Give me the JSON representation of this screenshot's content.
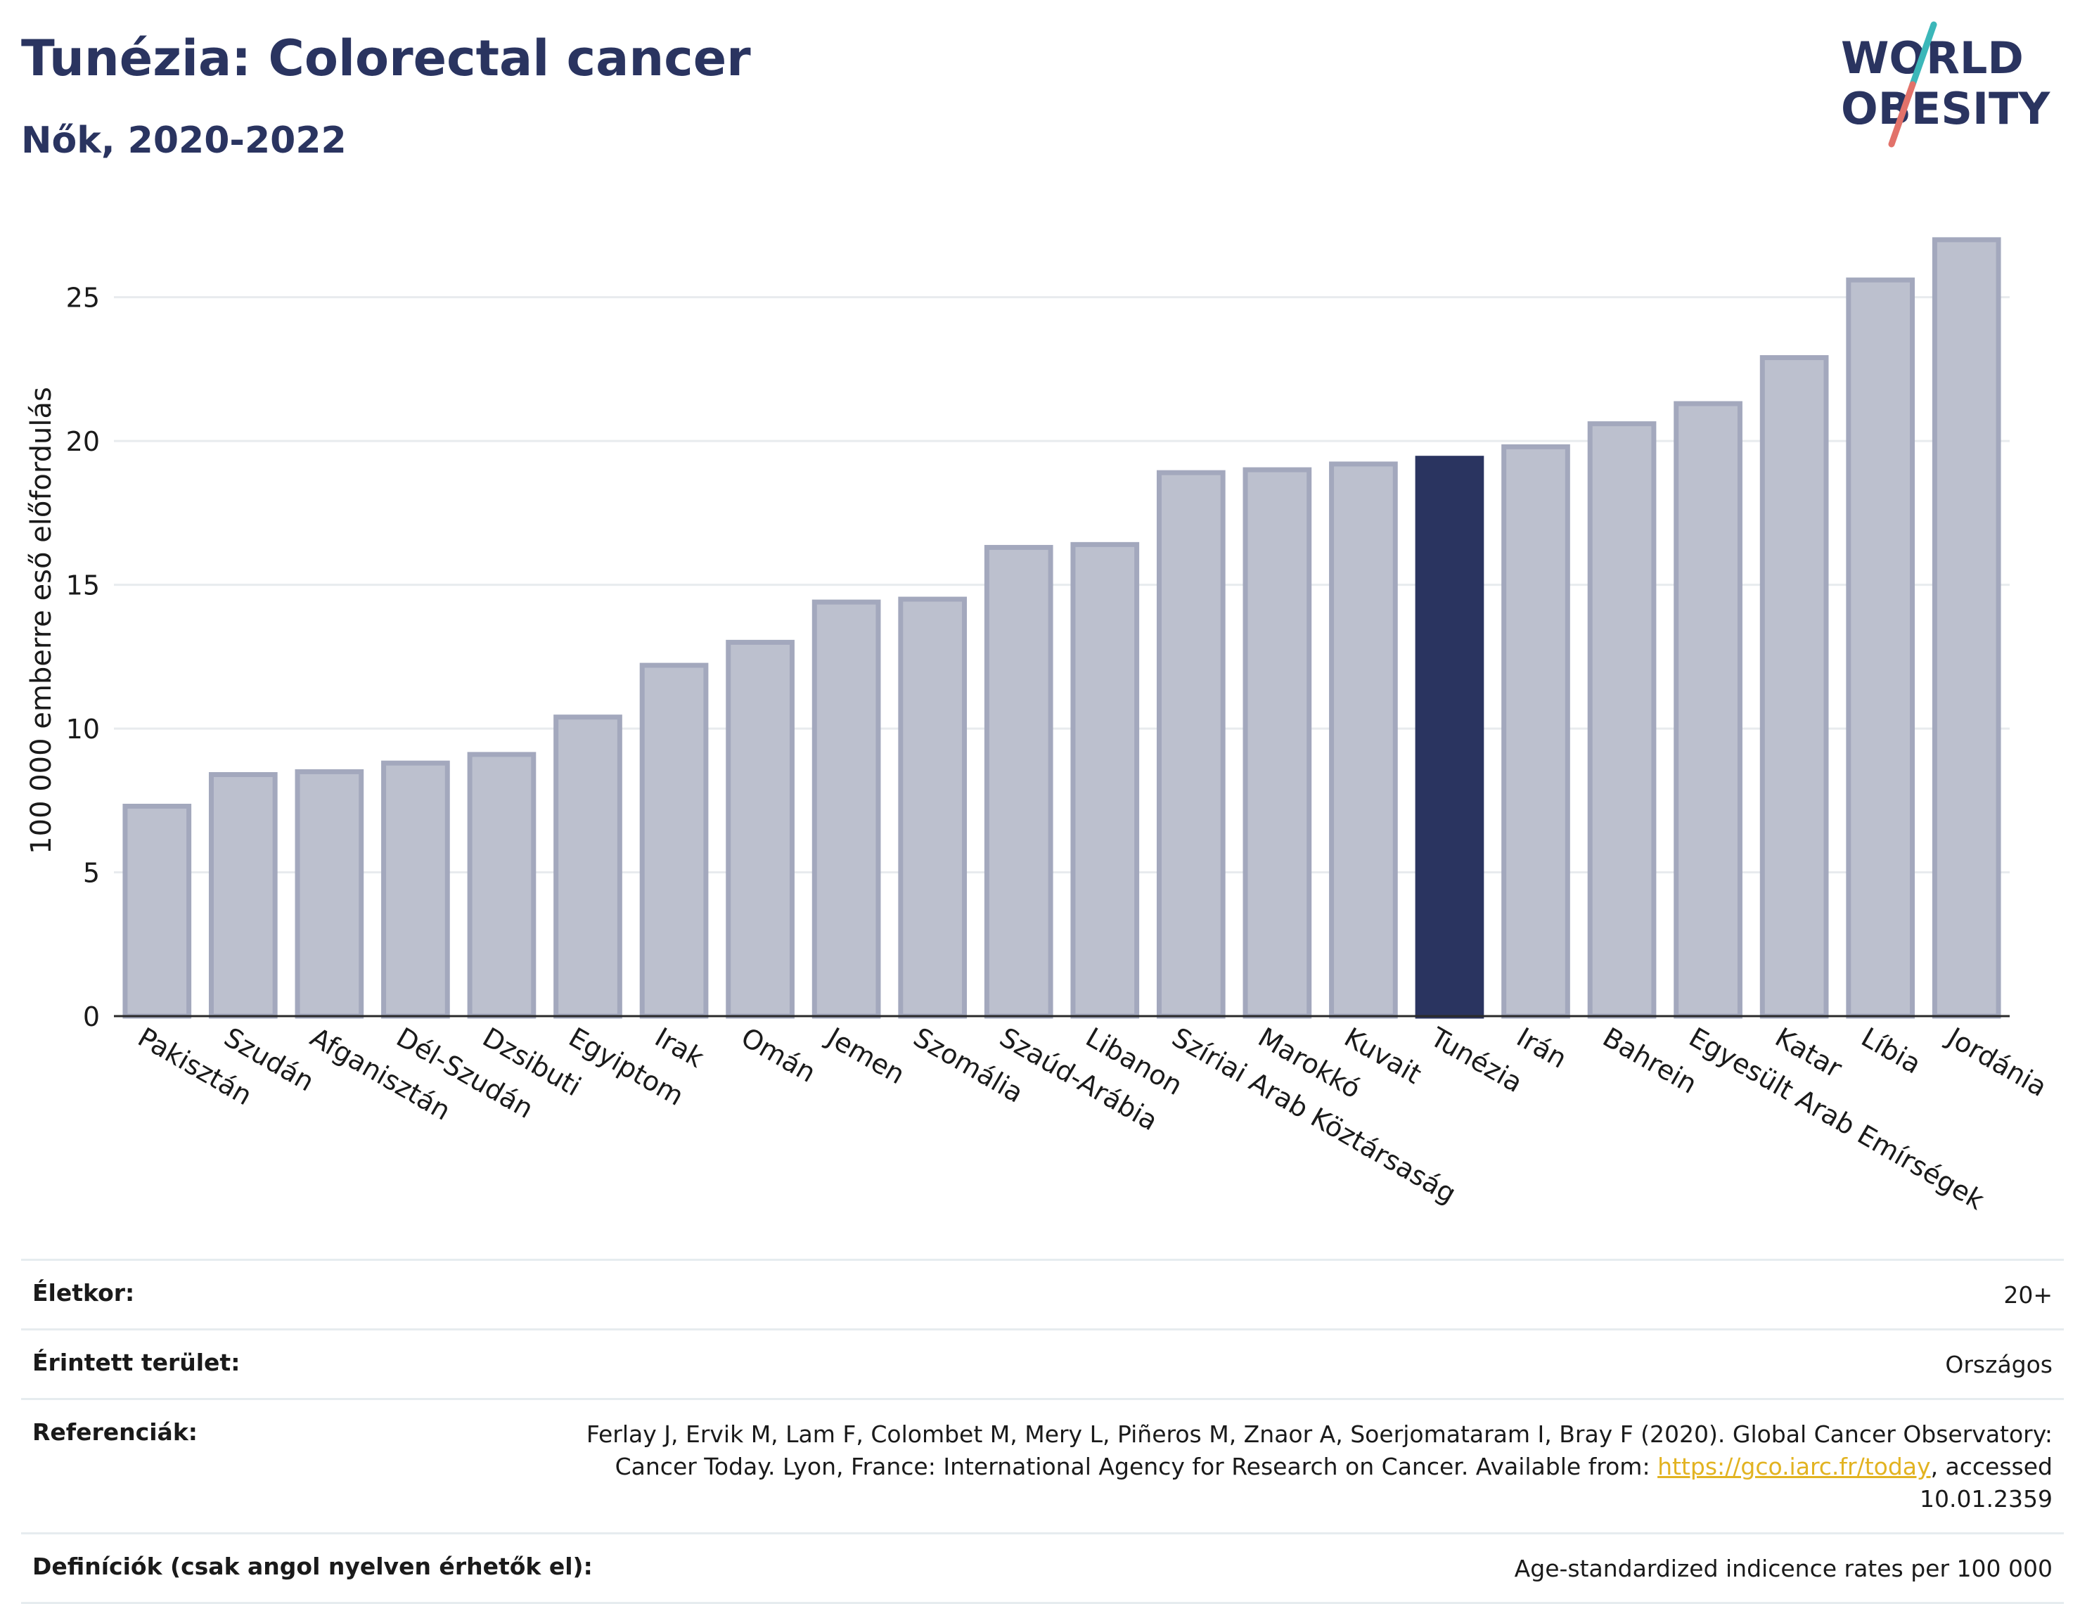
{
  "header": {
    "title": "Tunézia: Colorectal cancer",
    "subtitle": "Nők, 2020-2022",
    "logo_line1": "WORLD",
    "logo_line2": "OBESITY"
  },
  "colors": {
    "highlight": "#2a3460",
    "bar_fill": "#bcc0ce",
    "bar_stroke": "#a3a8bd",
    "axis_text": "#1a1a1a",
    "grid": "#e8ebee",
    "logo_teal": "#3bb7b9",
    "logo_coral": "#e2726a"
  },
  "chart_data": {
    "type": "bar",
    "title": "Tunézia: Colorectal cancer",
    "subtitle": "Nők, 2020-2022",
    "xlabel": "",
    "ylabel": "100 000 emberre eső előfordulás",
    "ylim": [
      0,
      28
    ],
    "yticks": [
      0,
      5,
      10,
      15,
      20,
      25
    ],
    "grid": true,
    "highlight": "Tunézia",
    "categories": [
      "Pakisztán",
      "Szudán",
      "Afganisztán",
      "Dél-Szudán",
      "Dzsibuti",
      "Egyiptom",
      "Irak",
      "Omán",
      "Jemen",
      "Szomália",
      "Szaúd-Arábia",
      "Libanon",
      "Szíriai Arab Köztársaság",
      "Marokkó",
      "Kuvait",
      "Tunézia",
      "Irán",
      "Bahrein",
      "Egyesült Arab Emírségek",
      "Katar",
      "Líbia",
      "Jordánia"
    ],
    "values": [
      7.3,
      8.4,
      8.5,
      8.8,
      9.1,
      10.4,
      12.2,
      13.0,
      14.4,
      14.5,
      16.3,
      16.4,
      18.9,
      19.0,
      19.2,
      19.4,
      19.8,
      20.6,
      21.3,
      22.9,
      25.6,
      27.0
    ]
  },
  "info": [
    {
      "label": "Életkor:",
      "value": "20+"
    },
    {
      "label": "Érintett terület:",
      "value": "Országos"
    },
    {
      "label": "Referenciák:",
      "value": "Ferlay J, Ervik M, Lam F, Colombet M, Mery L, Piñeros M, Znaor A, Soerjomataram I, Bray F (2020). Global Cancer Observatory: Cancer Today. Lyon, France: International Agency for Research on Cancer. Available from: ",
      "link": "https://gco.iarc.fr/today",
      "value_after": ", accessed 10.01.2359"
    },
    {
      "label": "Definíciók (csak angol nyelven érhetők el):",
      "value": "Age-standardized indicence rates per 100 000"
    }
  ]
}
